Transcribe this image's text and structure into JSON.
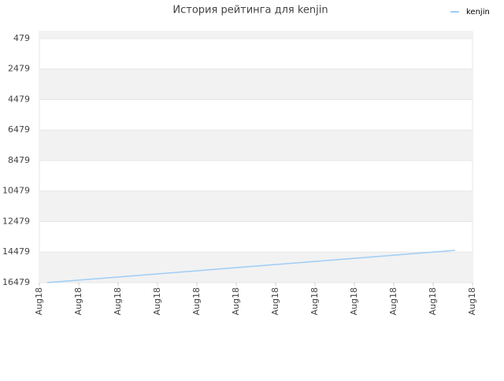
{
  "chart_data": {
    "type": "line",
    "title": "История рейтинга для kenjin",
    "x": [
      0.2,
      2.2,
      4.2,
      6.2,
      8.2,
      10.56
    ],
    "series": [
      {
        "name": "kenjin",
        "color": "#9fcdf5",
        "values": [
          16479,
          16071,
          15662,
          15254,
          14846,
          14363
        ]
      }
    ],
    "xlim": [
      0,
      11
    ],
    "xticks": [
      {
        "value": 0,
        "label": "Aug18"
      },
      {
        "value": 1,
        "label": "Aug18"
      },
      {
        "value": 2,
        "label": "Aug18"
      },
      {
        "value": 3,
        "label": "Aug18"
      },
      {
        "value": 4,
        "label": "Aug18"
      },
      {
        "value": 5,
        "label": "Aug18"
      },
      {
        "value": 6,
        "label": "Aug18"
      },
      {
        "value": 7,
        "label": "Aug18"
      },
      {
        "value": 8,
        "label": "Aug18"
      },
      {
        "value": 9,
        "label": "Aug18"
      },
      {
        "value": 10,
        "label": "Aug18"
      },
      {
        "value": 11,
        "label": "Aug18"
      }
    ],
    "ylim": [
      16479,
      15
    ],
    "yticks": [
      479,
      2479,
      4479,
      6479,
      8479,
      10479,
      12479,
      14479,
      16479
    ],
    "grid": true,
    "legend": "top-right"
  }
}
